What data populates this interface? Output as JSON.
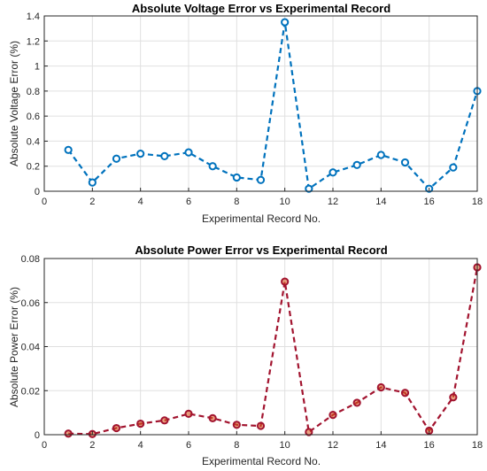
{
  "chart_data": [
    {
      "type": "line",
      "title": "Absolute Voltage Error vs Experimental Record",
      "xlabel": "Experimental Record No.",
      "ylabel": "Absolute Voltage Error (%)",
      "xlim": [
        0,
        18
      ],
      "ylim": [
        0,
        1.4
      ],
      "xticks": [
        0,
        2,
        4,
        6,
        8,
        10,
        12,
        14,
        16,
        18
      ],
      "xtick_labels": [
        "0",
        "2",
        "4",
        "6",
        "8",
        "10",
        "12",
        "14",
        "16",
        "18"
      ],
      "yticks": [
        0,
        0.2,
        0.4,
        0.6,
        0.8,
        1.0,
        1.2,
        1.4
      ],
      "ytick_labels": [
        "0",
        "0.2",
        "0.4",
        "0.6",
        "0.8",
        "1",
        "1.2",
        "1.4"
      ],
      "grid": true,
      "series": [
        {
          "x": [
            1,
            2,
            3,
            4,
            5,
            6,
            7,
            8,
            9,
            10,
            11,
            12,
            13,
            14,
            15,
            16,
            17,
            18
          ],
          "values": [
            0.33,
            0.07,
            0.26,
            0.3,
            0.28,
            0.31,
            0.2,
            0.11,
            0.09,
            1.35,
            0.02,
            0.15,
            0.21,
            0.29,
            0.23,
            0.02,
            0.19,
            0.8
          ],
          "color": "#0072bd",
          "marker": "circle",
          "line_style": "dashed"
        }
      ]
    },
    {
      "type": "line",
      "title": "Absolute Power Error vs Experimental Record",
      "xlabel": "Experimental Record No.",
      "ylabel": "Absolute Power Error (%)",
      "xlim": [
        0,
        18
      ],
      "ylim": [
        0,
        0.08
      ],
      "xticks": [
        0,
        2,
        4,
        6,
        8,
        10,
        12,
        14,
        16,
        18
      ],
      "xtick_labels": [
        "0",
        "2",
        "4",
        "6",
        "8",
        "10",
        "12",
        "14",
        "16",
        "18"
      ],
      "yticks": [
        0,
        0.02,
        0.04,
        0.06,
        0.08
      ],
      "ytick_labels": [
        "0",
        "0.02",
        "0.04",
        "0.06",
        "0.08"
      ],
      "grid": true,
      "series": [
        {
          "x": [
            1,
            2,
            3,
            4,
            5,
            6,
            7,
            8,
            9,
            10,
            11,
            12,
            13,
            14,
            15,
            16,
            17,
            18
          ],
          "values": [
            0.0005,
            0.0003,
            0.003,
            0.005,
            0.0065,
            0.0095,
            0.0075,
            0.0045,
            0.004,
            0.0695,
            0.0012,
            0.009,
            0.0145,
            0.0215,
            0.019,
            0.0018,
            0.017,
            0.076
          ],
          "color": "#a2142f",
          "marker_fill": "#d95319",
          "marker": "circle",
          "line_style": "dashed"
        }
      ]
    }
  ]
}
